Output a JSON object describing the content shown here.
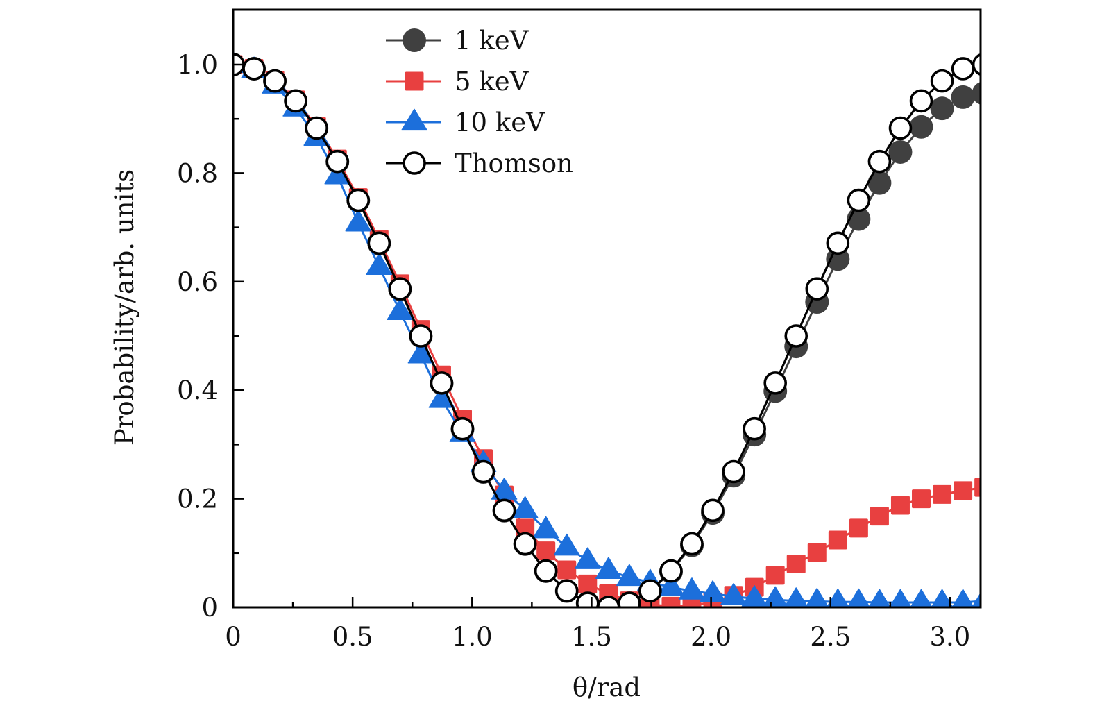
{
  "chart_data": {
    "type": "line",
    "title": "",
    "xlabel": "θ/rad",
    "ylabel": "Probability/arb. units",
    "xlim": [
      0,
      3.14159
    ],
    "ylim": [
      0,
      1.1
    ],
    "x_ticks": [
      0,
      0.5,
      1.0,
      1.5,
      2.0,
      2.5,
      3.0
    ],
    "x_tick_labels": [
      "0",
      "0.5",
      "1.0",
      "1.5",
      "2.0",
      "2.5",
      "3.0"
    ],
    "x_minor_ticks": [
      0.25,
      0.75,
      1.25,
      1.75,
      2.25,
      2.75
    ],
    "y_ticks": [
      0,
      0.2,
      0.4,
      0.6,
      0.8,
      1.0
    ],
    "y_tick_labels": [
      "0",
      "0.2",
      "0.4",
      "0.6",
      "0.8",
      "1.0"
    ],
    "y_minor_ticks": [
      0.1,
      0.3,
      0.5,
      0.7,
      0.9
    ],
    "grid": false,
    "legend_position": "top-center",
    "x_description": "37 points, θ from 0 to π in steps of π/36",
    "series": [
      {
        "name": "1 keV",
        "marker": "circle-filled",
        "color": "#404040",
        "values": [
          1.0,
          0.9924,
          0.9697,
          0.9328,
          0.8826,
          0.8208,
          0.7493,
          0.6701,
          0.5859,
          0.4994,
          0.4124,
          0.3282,
          0.2493,
          0.178,
          0.1166,
          0.0667,
          0.03,
          0.0075,
          0.0,
          0.0075,
          0.0297,
          0.0656,
          0.1142,
          0.1738,
          0.2426,
          0.3182,
          0.3984,
          0.4807,
          0.5626,
          0.6416,
          0.7154,
          0.7818,
          0.8389,
          0.8852,
          0.9192,
          0.94,
          0.947
        ]
      },
      {
        "name": "5 keV",
        "marker": "square",
        "color": "#e84040",
        "values": [
          1.0,
          0.993,
          0.971,
          0.935,
          0.886,
          0.826,
          0.755,
          0.678,
          0.596,
          0.512,
          0.428,
          0.347,
          0.274,
          0.207,
          0.146,
          0.104,
          0.069,
          0.043,
          0.025,
          0.012,
          0.005,
          0.002,
          0.003,
          0.01,
          0.022,
          0.037,
          0.059,
          0.08,
          0.101,
          0.124,
          0.146,
          0.168,
          0.188,
          0.2,
          0.208,
          0.215,
          0.221
        ]
      },
      {
        "name": "10 keV",
        "marker": "triangle",
        "color": "#1c6fdb",
        "values": [
          1.0,
          0.99,
          0.962,
          0.92,
          0.866,
          0.795,
          0.708,
          0.628,
          0.545,
          0.465,
          0.383,
          0.32,
          0.265,
          0.214,
          0.18,
          0.143,
          0.111,
          0.086,
          0.068,
          0.055,
          0.046,
          0.037,
          0.03,
          0.025,
          0.02,
          0.016,
          0.014,
          0.012,
          0.011,
          0.01,
          0.01,
          0.009,
          0.009,
          0.009,
          0.009,
          0.009,
          0.012
        ]
      },
      {
        "name": "Thomson",
        "marker": "circle-open",
        "color": "#000000",
        "values": [
          1.0,
          0.9924,
          0.9698,
          0.933,
          0.883,
          0.8214,
          0.75,
          0.671,
          0.5868,
          0.5,
          0.4132,
          0.329,
          0.25,
          0.1786,
          0.117,
          0.067,
          0.0302,
          0.0076,
          0.0,
          0.0076,
          0.0302,
          0.067,
          0.117,
          0.1786,
          0.25,
          0.329,
          0.4132,
          0.5,
          0.5868,
          0.671,
          0.75,
          0.8214,
          0.883,
          0.933,
          0.9698,
          0.9924,
          1.0
        ]
      }
    ]
  }
}
